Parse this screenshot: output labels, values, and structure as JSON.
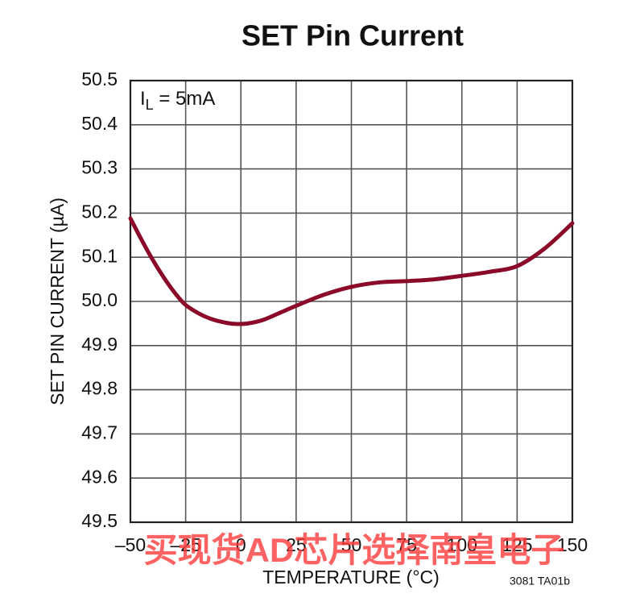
{
  "chart_data": {
    "type": "line",
    "title": "SET Pin Current",
    "annotation": [
      "I",
      "L",
      " = 5mA"
    ],
    "x_label": "TEMPERATURE (°C)",
    "y_label": "SET PIN CURRENT (µA)",
    "note": "3081 TA01b",
    "watermark": "买现货AD芯片选择南皇电子",
    "x": [
      -50,
      -45,
      -40,
      -35,
      -30,
      -25,
      -18,
      -12,
      -6,
      -2,
      3,
      10,
      18,
      25,
      37.5,
      50,
      62.5,
      75,
      87.5,
      100,
      112.5,
      125,
      137.5,
      150
    ],
    "series": [
      {
        "name": "SET pin current",
        "color": "#8b0a2a",
        "values": [
          50.188,
          50.14,
          50.095,
          50.055,
          50.02,
          49.992,
          49.97,
          49.958,
          49.951,
          49.949,
          49.95,
          49.958,
          49.975,
          49.99,
          50.015,
          50.033,
          50.043,
          50.046,
          50.05,
          50.058,
          50.067,
          50.08,
          50.12,
          50.177
        ]
      }
    ],
    "xlim": [
      -50,
      150
    ],
    "xticks": [
      {
        "value": -50,
        "label": "–50"
      },
      {
        "value": -25,
        "label": "–25"
      },
      0,
      25,
      50,
      75,
      100,
      125,
      150
    ],
    "ylim": [
      49.5,
      50.5
    ],
    "yticks": [
      49.5,
      49.6,
      49.7,
      49.8,
      49.9,
      {
        "value": 50,
        "label": "50.0"
      },
      50.1,
      50.2,
      50.3,
      50.4,
      50.5
    ],
    "grid": true
  }
}
